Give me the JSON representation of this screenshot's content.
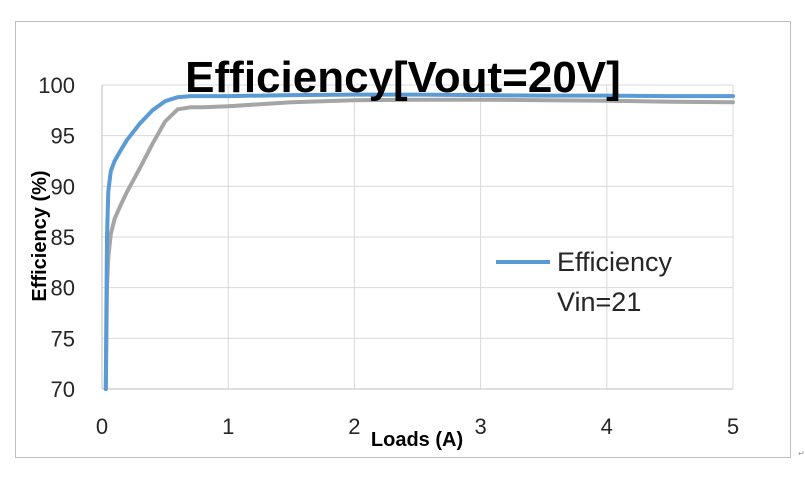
{
  "chart_data": {
    "type": "line",
    "title": "Efficiency[Vout=20V]",
    "xlabel": "Loads (A)",
    "ylabel": "Efficiency (%)",
    "xlim": [
      0,
      5
    ],
    "ylim": [
      70,
      100
    ],
    "x_ticks": [
      "0",
      "1",
      "2",
      "3",
      "4",
      "5"
    ],
    "y_ticks": [
      "70",
      "75",
      "80",
      "85",
      "90",
      "95",
      "100"
    ],
    "grid": true,
    "legend_position": "right",
    "series": [
      {
        "name": "Efficiency Vin=21",
        "color": "#5b9bd5",
        "points": [
          [
            0.03,
            70
          ],
          [
            0.035,
            78
          ],
          [
            0.04,
            85
          ],
          [
            0.05,
            89.5
          ],
          [
            0.07,
            91.5
          ],
          [
            0.1,
            92.5
          ],
          [
            0.15,
            93.6
          ],
          [
            0.2,
            94.6
          ],
          [
            0.3,
            96.2
          ],
          [
            0.4,
            97.5
          ],
          [
            0.5,
            98.4
          ],
          [
            0.6,
            98.8
          ],
          [
            0.7,
            98.9
          ],
          [
            1,
            98.9
          ],
          [
            1.5,
            99
          ],
          [
            2,
            99.05
          ],
          [
            2.5,
            99.05
          ],
          [
            3,
            99
          ],
          [
            3.5,
            98.95
          ],
          [
            4,
            98.95
          ],
          [
            4.5,
            98.9
          ],
          [
            5,
            98.9
          ]
        ]
      },
      {
        "name": "",
        "color": "#a5a5a5",
        "points": [
          [
            0.03,
            70
          ],
          [
            0.035,
            75
          ],
          [
            0.04,
            80
          ],
          [
            0.05,
            83
          ],
          [
            0.07,
            85.3
          ],
          [
            0.1,
            86.8
          ],
          [
            0.15,
            88.2
          ],
          [
            0.2,
            89.5
          ],
          [
            0.3,
            91.8
          ],
          [
            0.4,
            94.2
          ],
          [
            0.5,
            96.4
          ],
          [
            0.6,
            97.6
          ],
          [
            0.7,
            97.8
          ],
          [
            0.8,
            97.8
          ],
          [
            1,
            97.9
          ],
          [
            1.5,
            98.3
          ],
          [
            2,
            98.5
          ],
          [
            2.5,
            98.55
          ],
          [
            3,
            98.55
          ],
          [
            3.5,
            98.5
          ],
          [
            4,
            98.45
          ],
          [
            4.5,
            98.35
          ],
          [
            5,
            98.3
          ]
        ]
      }
    ],
    "legend": [
      {
        "line1": "Efficiency",
        "line2": "Vin=21",
        "color": "#5b9bd5"
      }
    ]
  }
}
